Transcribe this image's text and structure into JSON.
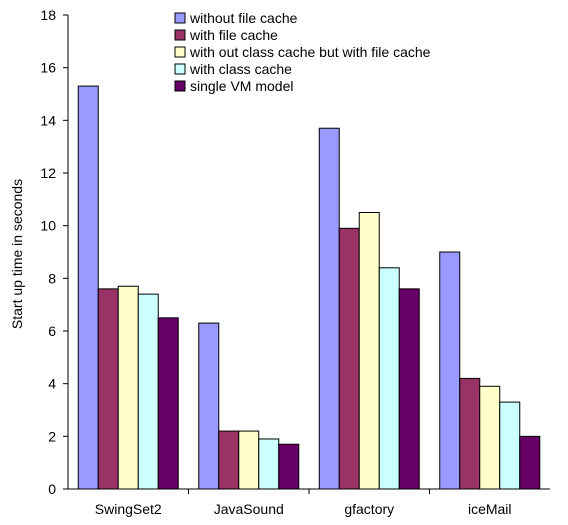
{
  "chart_data": {
    "type": "bar",
    "title": "",
    "xlabel": "",
    "ylabel": "Start up time in seconds",
    "ylim": [
      0,
      18
    ],
    "yticks": [
      0,
      2,
      4,
      6,
      8,
      10,
      12,
      14,
      16,
      18
    ],
    "grid": false,
    "legend_position": "top-center",
    "categories": [
      "SwingSet2",
      "JavaSound",
      "gfactory",
      "iceMail"
    ],
    "series": [
      {
        "name": "without file cache",
        "color": "#9999ff",
        "values": [
          15.3,
          6.3,
          13.7,
          9.0
        ]
      },
      {
        "name": "with file cache",
        "color": "#993366",
        "values": [
          7.6,
          2.2,
          9.9,
          4.2
        ]
      },
      {
        "name": "with out class cache but with file cache",
        "color": "#ffffcc",
        "values": [
          7.7,
          2.2,
          10.5,
          3.9
        ]
      },
      {
        "name": "with class cache",
        "color": "#ccffff",
        "values": [
          7.4,
          1.9,
          8.4,
          3.3
        ]
      },
      {
        "name": "single VM model",
        "color": "#660066",
        "values": [
          6.5,
          1.7,
          7.6,
          2.0
        ]
      }
    ]
  }
}
